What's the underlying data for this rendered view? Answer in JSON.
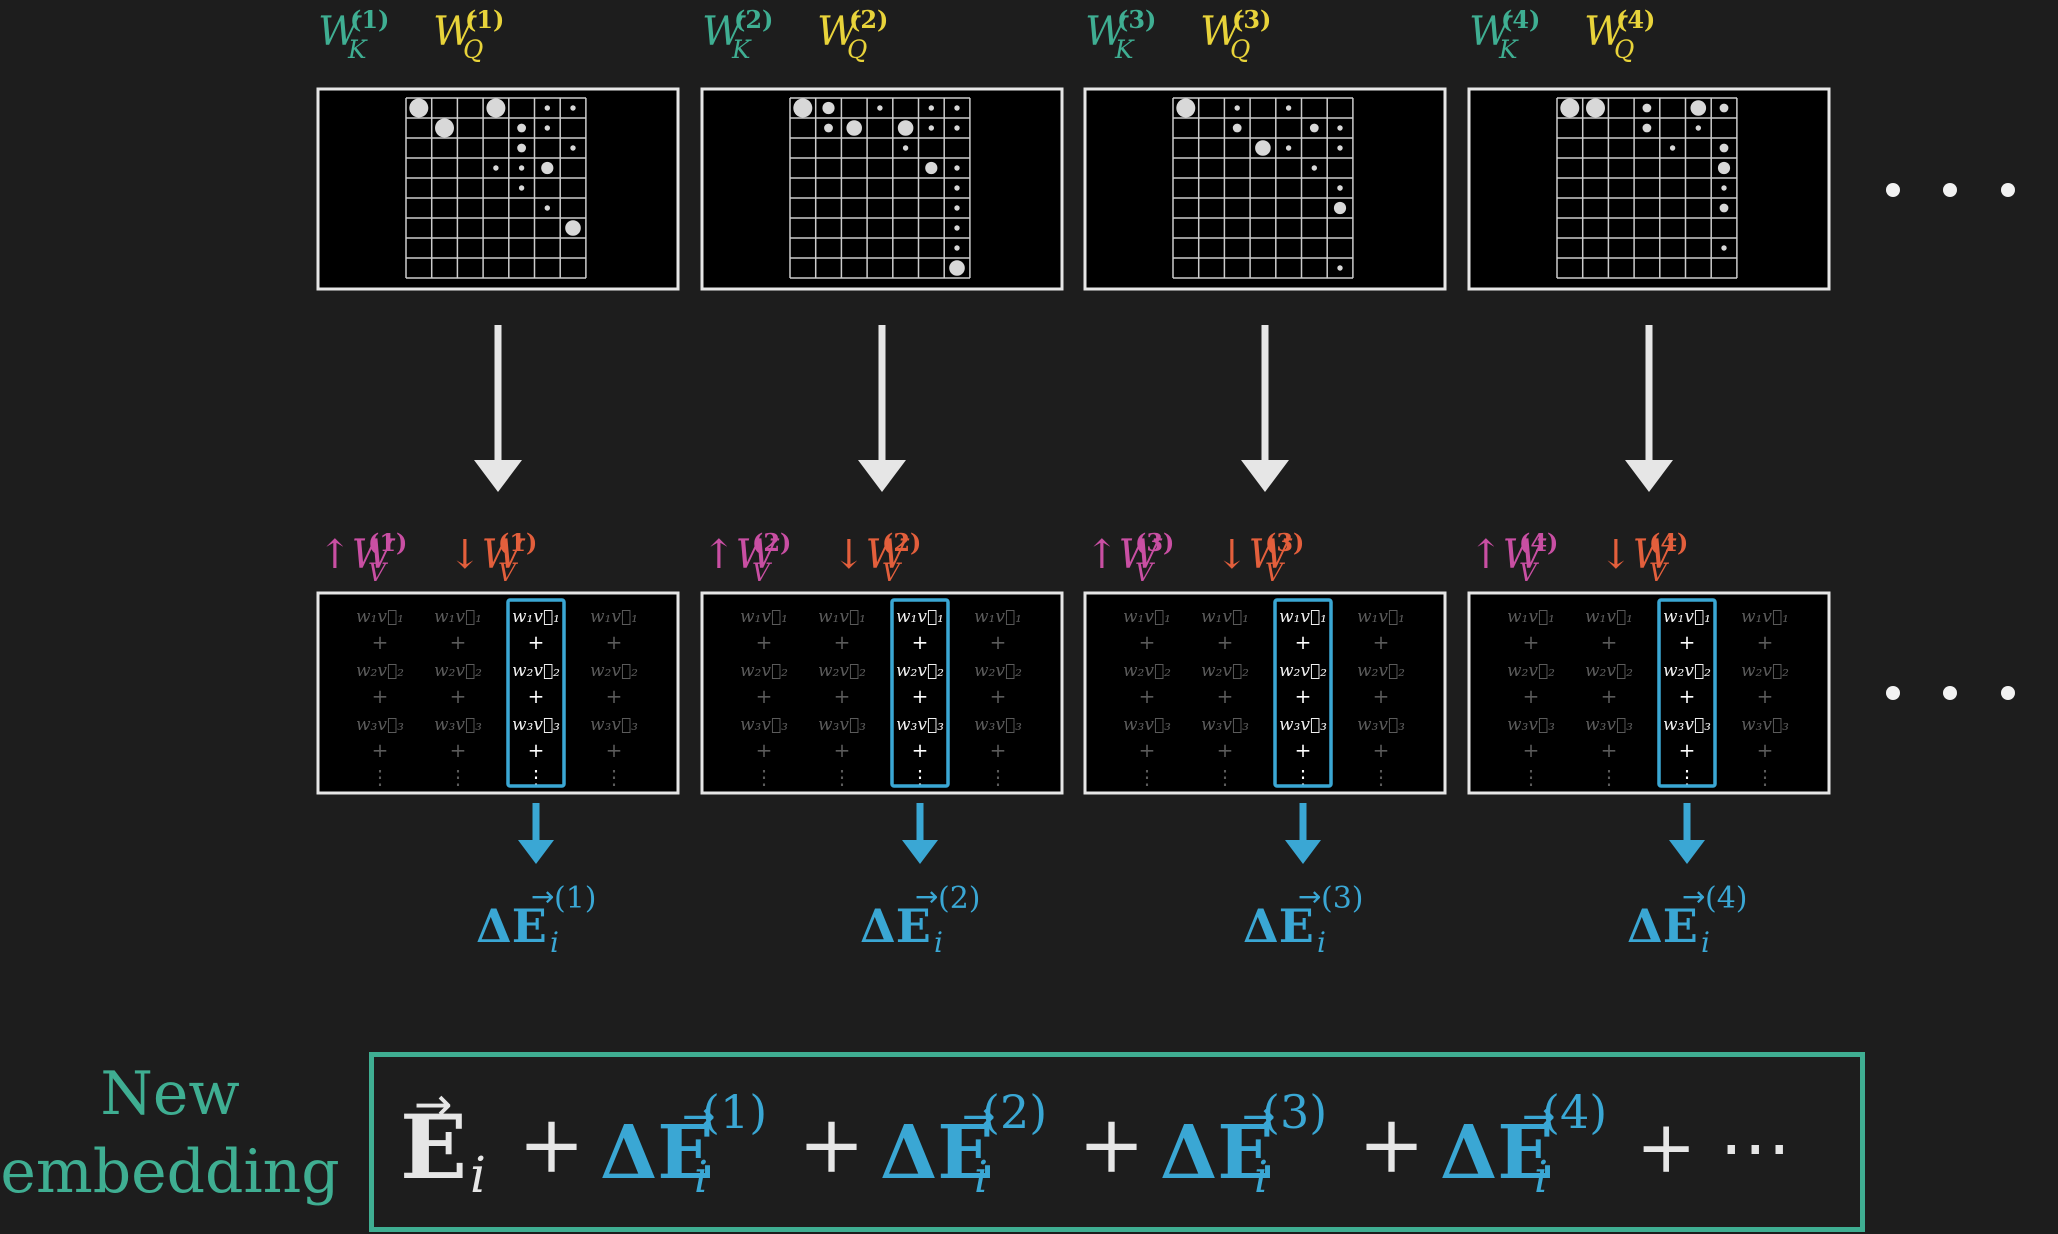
{
  "heads": [
    {
      "key_label": "W",
      "key_sub": "K",
      "key_sup": "(1)",
      "query_label": "W",
      "query_sub": "Q",
      "query_sup": "(1)",
      "value_up_label": "↑W",
      "value_up_sub": "V",
      "value_up_sup": "(1)",
      "value_down_label": "↓W",
      "value_down_sub": "V",
      "value_down_sup": "(1)",
      "delta_label": "ΔE",
      "delta_sub": "i",
      "delta_sup": "(1)",
      "dots": [
        [
          0,
          0,
          5
        ],
        [
          0,
          3,
          5
        ],
        [
          1,
          1,
          5
        ],
        [
          0,
          5,
          1
        ],
        [
          0,
          7,
          1
        ],
        [
          1,
          4,
          2
        ],
        [
          1,
          5,
          1
        ],
        [
          2,
          4,
          2
        ],
        [
          2,
          6,
          1
        ],
        [
          3,
          3,
          1
        ],
        [
          3,
          4,
          1
        ],
        [
          3,
          5,
          3
        ],
        [
          4,
          4,
          1
        ],
        [
          5,
          5,
          1
        ],
        [
          6,
          6,
          1
        ],
        [
          6,
          7,
          1
        ],
        [
          6,
          8,
          4
        ]
      ]
    },
    {
      "key_label": "W",
      "key_sub": "K",
      "key_sup": "(2)",
      "query_label": "W",
      "query_sub": "Q",
      "query_sup": "(2)",
      "value_up_label": "↑W",
      "value_up_sub": "V",
      "value_up_sup": "(2)",
      "value_down_label": "↓W",
      "value_down_sub": "V",
      "value_down_sup": "(2)",
      "delta_label": "ΔE",
      "delta_sub": "i",
      "delta_sup": "(2)",
      "dots": [
        [
          0,
          0,
          5
        ],
        [
          0,
          1,
          3
        ],
        [
          0,
          3,
          1
        ],
        [
          0,
          5,
          1
        ],
        [
          0,
          7,
          1
        ],
        [
          1,
          1,
          2
        ],
        [
          1,
          2,
          4
        ],
        [
          1,
          4,
          4
        ],
        [
          1,
          5,
          1
        ],
        [
          1,
          6,
          1
        ],
        [
          2,
          4,
          1
        ],
        [
          3,
          5,
          3
        ],
        [
          3,
          6,
          1
        ],
        [
          4,
          6,
          1
        ],
        [
          5,
          7,
          1
        ],
        [
          6,
          7,
          1
        ],
        [
          7,
          7,
          1
        ],
        [
          8,
          8,
          4
        ]
      ]
    },
    {
      "key_label": "W",
      "key_sub": "K",
      "key_sup": "(3)",
      "query_label": "W",
      "query_sub": "Q",
      "query_sup": "(3)",
      "value_up_label": "↑W",
      "value_up_sub": "V",
      "value_up_sup": "(3)",
      "value_down_label": "↓W",
      "value_down_sub": "V",
      "value_down_sup": "(3)",
      "delta_label": "ΔE",
      "delta_sub": "i",
      "delta_sup": "(3)",
      "dots": [
        [
          0,
          0,
          5
        ],
        [
          0,
          2,
          1
        ],
        [
          0,
          4,
          1
        ],
        [
          1,
          2,
          2
        ],
        [
          1,
          5,
          2
        ],
        [
          1,
          6,
          1
        ],
        [
          2,
          3,
          4
        ],
        [
          2,
          4,
          1
        ],
        [
          2,
          7,
          1
        ],
        [
          3,
          5,
          1
        ],
        [
          4,
          6,
          1
        ],
        [
          4,
          7,
          1
        ],
        [
          5,
          8,
          3
        ],
        [
          8,
          8,
          1
        ]
      ]
    },
    {
      "key_label": "W",
      "key_sub": "K",
      "key_sup": "(4)",
      "query_label": "W",
      "query_sub": "Q",
      "query_sup": "(4)",
      "value_up_label": "↑W",
      "value_up_sub": "V",
      "value_up_sup": "(4)",
      "value_down_label": "↓W",
      "value_down_sub": "V",
      "value_down_sup": "(4)",
      "delta_label": "ΔE",
      "delta_sub": "i",
      "delta_sup": "(4)",
      "dots": [
        [
          0,
          0,
          5
        ],
        [
          0,
          1,
          5
        ],
        [
          0,
          3,
          2
        ],
        [
          0,
          5,
          4
        ],
        [
          0,
          7,
          2
        ],
        [
          1,
          3,
          2
        ],
        [
          1,
          5,
          1
        ],
        [
          2,
          4,
          1
        ],
        [
          2,
          6,
          1
        ],
        [
          2,
          8,
          2
        ],
        [
          3,
          7,
          3
        ],
        [
          4,
          7,
          1
        ],
        [
          5,
          6,
          2
        ],
        [
          7,
          8,
          1
        ]
      ]
    }
  ],
  "value_rows": [
    "w₁v⃗₁",
    "+",
    "w₂v⃗₂",
    "+",
    "w₃v⃗₃",
    "+",
    "⋮"
  ],
  "ellipsis": "• • •",
  "new_embedding": {
    "line1": "New",
    "line2": "embedding",
    "base_label": "E",
    "base_sub": "i",
    "plus": "+",
    "delta_label": "ΔE",
    "delta_sub": "i",
    "terms_sup": [
      "(1)",
      "(2)",
      "(3)",
      "(4)"
    ],
    "trailing": "+ ⋯"
  },
  "colors": {
    "background": "#1d1d1d",
    "key": "#3fae92",
    "query": "#e8d33a",
    "value_up": "#c94fa3",
    "value_down": "#e35f3c",
    "delta": "#3aa7d4",
    "box_border": "#e6e6e6",
    "grid": "#cccccc",
    "arrow": "#e6e6e6",
    "summary_border": "#3fae92"
  }
}
